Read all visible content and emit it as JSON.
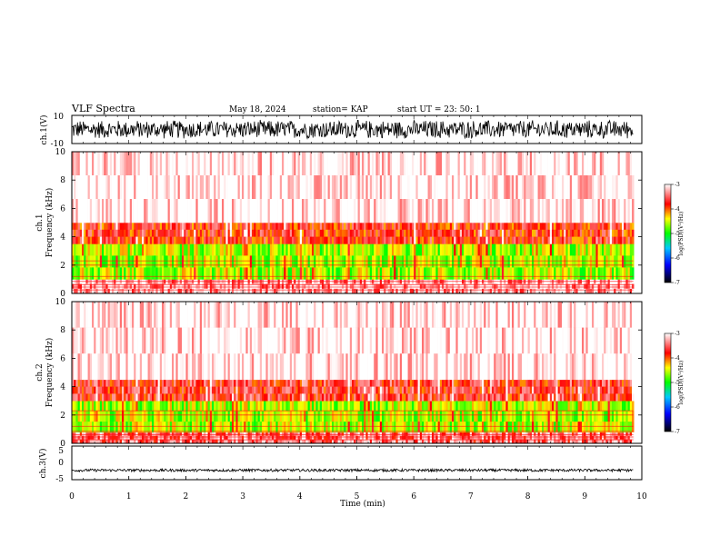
{
  "header": {
    "title": "VLF Spectra",
    "date": "May 18, 2024",
    "station": "station= KAP",
    "start": "start  UT  =   23: 50: 1"
  },
  "chart_data": [
    {
      "type": "line",
      "panel": "ch1-waveform",
      "ylabel": "ch.1(V)",
      "ylim": [
        -10,
        10
      ],
      "yticks": [
        "10",
        "-10"
      ],
      "xlim": [
        0,
        10
      ],
      "description_values": {
        "mean": 0,
        "amplitude_approx": 7
      }
    },
    {
      "type": "heatmap",
      "panel": "ch1-spectrogram",
      "ylabel": "ch.1\nFrequency (kHz)",
      "ylim": [
        0,
        10
      ],
      "yticks": [
        "0",
        "2",
        "4",
        "6",
        "8",
        "10"
      ],
      "xlim": [
        0,
        10
      ],
      "data_extent_min": [
        0,
        9.85
      ],
      "colorbar": {
        "label": "log(PSD)(V²/Hz)",
        "range": [
          -7,
          -3
        ],
        "ticks": [
          "-3",
          "-4",
          "-5",
          "-6",
          "-7"
        ]
      },
      "bands_khz": [
        {
          "from": 0,
          "to": 1.0,
          "level": -3.3
        },
        {
          "from": 1.0,
          "to": 3.5,
          "level": -4.6
        },
        {
          "from": 3.5,
          "to": 5.0,
          "level": -3.8
        },
        {
          "from": 5.0,
          "to": 10,
          "level": -3.0
        }
      ]
    },
    {
      "type": "heatmap",
      "panel": "ch2-spectrogram",
      "ylabel": "ch.2\nFrequency (kHz)",
      "ylim": [
        0,
        10
      ],
      "yticks": [
        "0",
        "2",
        "4",
        "6",
        "8",
        "10"
      ],
      "xlim": [
        0,
        10
      ],
      "data_extent_min": [
        0,
        9.85
      ],
      "colorbar": {
        "label": "log(PSD)(V²/Hz)",
        "range": [
          -7,
          -3
        ],
        "ticks": [
          "-3",
          "-4",
          "-5",
          "-6",
          "-7"
        ]
      },
      "bands_khz": [
        {
          "from": 0,
          "to": 0.8,
          "level": -3.5
        },
        {
          "from": 0.8,
          "to": 3.0,
          "level": -4.6
        },
        {
          "from": 3.0,
          "to": 4.5,
          "level": -3.7
        },
        {
          "from": 4.5,
          "to": 10,
          "level": -3.0
        }
      ]
    },
    {
      "type": "line",
      "panel": "ch3-waveform",
      "ylabel": "ch.3(V)",
      "ylim": [
        -5,
        5
      ],
      "yticks": [
        "5",
        "0",
        "-5"
      ],
      "xlim": [
        0,
        10
      ],
      "xlabel": "Time  (min)",
      "xticks": [
        "0",
        "1",
        "2",
        "3",
        "4",
        "5",
        "6",
        "7",
        "8",
        "9",
        "10"
      ],
      "description_values": {
        "mean": -2.2,
        "amplitude_approx": 0.4
      }
    }
  ],
  "colors": {
    "colormap": [
      "#000000",
      "#0000ff",
      "#00ff00",
      "#ffff00",
      "#ff0000",
      "#ffffff"
    ],
    "waveform": "#000000"
  }
}
